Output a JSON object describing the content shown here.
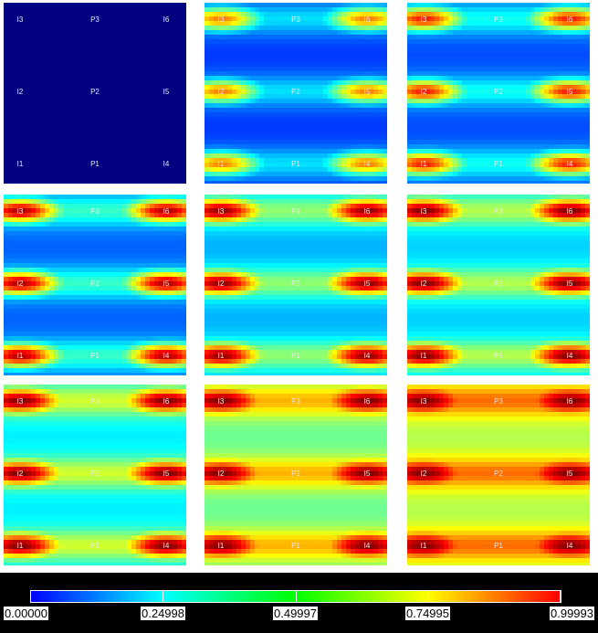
{
  "chart_data": {
    "type": "heatmap",
    "description_layout": "3x3 grid of heatmap frames (time sequence) sharing one color scale",
    "point_labels": [
      "I3",
      "P3",
      "I6",
      "I2",
      "P2",
      "I5",
      "I1",
      "P1",
      "I4"
    ],
    "point_grid": {
      "columns": [
        "left",
        "center",
        "right"
      ],
      "rows": [
        "top",
        "middle",
        "bottom"
      ]
    },
    "frames": [
      {
        "index": 1,
        "source_level": 0.0,
        "background_level": 0.0
      },
      {
        "index": 2,
        "source_level": 0.75,
        "background_level": 0.18
      },
      {
        "index": 3,
        "source_level": 0.85,
        "background_level": 0.2
      },
      {
        "index": 4,
        "source_level": 0.95,
        "background_level": 0.22
      },
      {
        "index": 5,
        "source_level": 0.98,
        "background_level": 0.3
      },
      {
        "index": 6,
        "source_level": 1.0,
        "background_level": 0.33
      },
      {
        "index": 7,
        "source_level": 1.0,
        "background_level": 0.36
      },
      {
        "index": 8,
        "source_level": 1.0,
        "background_level": 0.48
      },
      {
        "index": 9,
        "source_level": 1.0,
        "background_level": 0.55
      }
    ],
    "colorbar": {
      "min": 0.0,
      "max": 0.99993,
      "colors": [
        "#0000ff",
        "#00ffff",
        "#00ff00",
        "#ffff00",
        "#ff0000"
      ],
      "tick_labels": [
        "0.00000",
        "0.24998",
        "0.49997",
        "0.74995",
        "0.99993"
      ]
    },
    "colorscale": "jet",
    "grid": false,
    "legend": "bottom colorbar"
  }
}
